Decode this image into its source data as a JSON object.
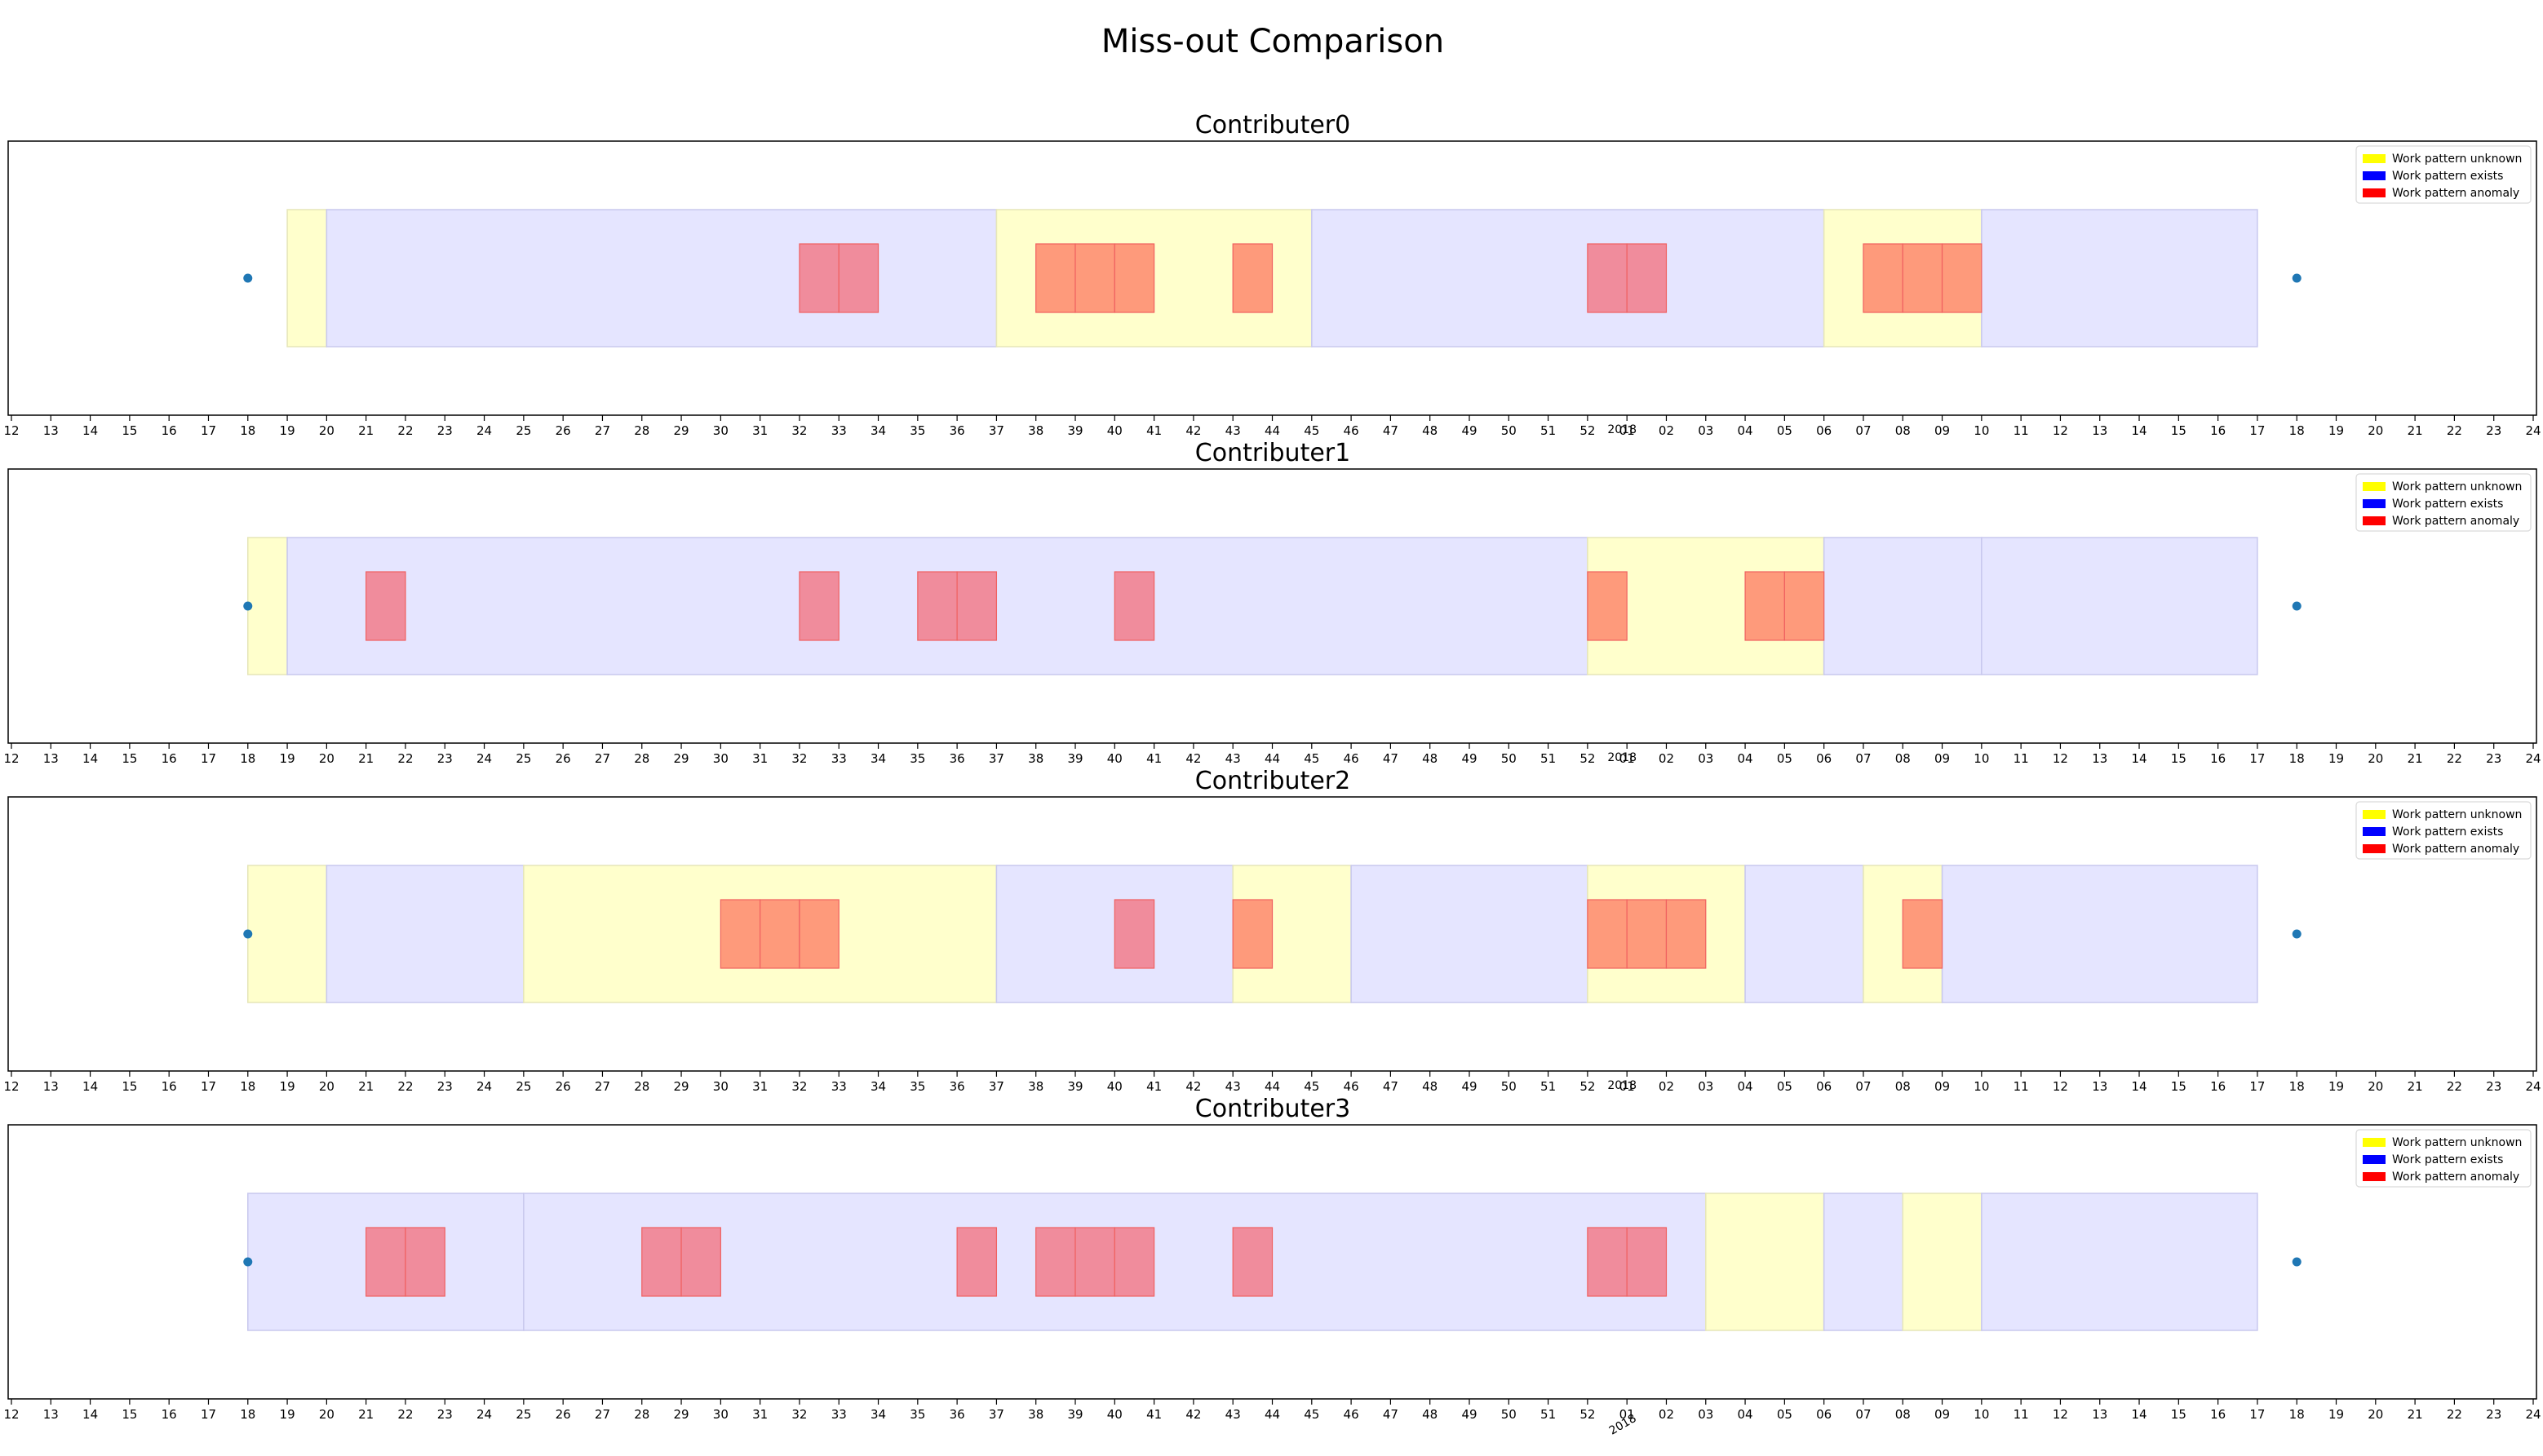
{
  "figure": {
    "title": "Miss-out Comparison"
  },
  "colors": {
    "unknown_fill": "#ffffcc",
    "exists_fill": "#e5e5ff",
    "anomaly_on_exists": "#f08c9c",
    "anomaly_on_unknown": "#fe9a7b",
    "anomaly_edge": "#f06060",
    "marker": "#1f77b4",
    "legend_unknown": "#ffff00",
    "legend_exists": "#0000ff",
    "legend_anomaly": "#ff0000"
  },
  "legend": [
    {
      "label": "Work pattern unknown",
      "color_key": "legend_unknown"
    },
    {
      "label": "Work pattern exists",
      "color_key": "legend_exists"
    },
    {
      "label": "Work pattern anomaly",
      "color_key": "legend_anomaly"
    }
  ],
  "chart_data": {
    "type": "timeline",
    "x_axis": {
      "unit": "ISO week",
      "ticks": [
        "12",
        "13",
        "14",
        "15",
        "16",
        "17",
        "18",
        "19",
        "20",
        "21",
        "22",
        "23",
        "24",
        "25",
        "26",
        "27",
        "28",
        "29",
        "30",
        "31",
        "32",
        "33",
        "34",
        "35",
        "36",
        "37",
        "38",
        "39",
        "40",
        "41",
        "42",
        "43",
        "44",
        "45",
        "46",
        "47",
        "48",
        "49",
        "50",
        "51",
        "52",
        "01",
        "02",
        "03",
        "04",
        "05",
        "06",
        "07",
        "08",
        "09",
        "10",
        "11",
        "12",
        "13",
        "14",
        "15",
        "16",
        "17",
        "18",
        "19",
        "20",
        "21",
        "22",
        "23",
        "24"
      ],
      "year_label": "2018",
      "year_label_at": "01"
    },
    "legend_position": "top-right",
    "panels": [
      {
        "title": "Contributer0",
        "markers": [
          "18",
          "18"
        ],
        "segments": [
          {
            "state": "unknown",
            "from": "19",
            "to": "20"
          },
          {
            "state": "exists",
            "from": "20",
            "to": "37"
          },
          {
            "state": "unknown",
            "from": "37",
            "to": "45"
          },
          {
            "state": "exists",
            "from": "45",
            "to": "06"
          },
          {
            "state": "unknown",
            "from": "06",
            "to": "10"
          },
          {
            "state": "exists",
            "from": "10",
            "to": "17"
          }
        ],
        "anomalies": [
          "32",
          "33",
          "38",
          "39",
          "40",
          "43",
          "52",
          "01",
          "07",
          "08",
          "09"
        ]
      },
      {
        "title": "Contributer1",
        "markers": [
          "18",
          "18"
        ],
        "segments": [
          {
            "state": "unknown",
            "from": "18",
            "to": "19"
          },
          {
            "state": "exists",
            "from": "19",
            "to": "52"
          },
          {
            "state": "unknown",
            "from": "52",
            "to": "06"
          },
          {
            "state": "exists",
            "from": "06",
            "to": "10"
          },
          {
            "state": "exists",
            "from": "10",
            "to": "17"
          }
        ],
        "anomalies": [
          "21",
          "32",
          "35",
          "36",
          "40",
          "52",
          "04",
          "05"
        ]
      },
      {
        "title": "Contributer2",
        "markers": [
          "18",
          "18"
        ],
        "segments": [
          {
            "state": "unknown",
            "from": "18",
            "to": "20"
          },
          {
            "state": "exists",
            "from": "20",
            "to": "25"
          },
          {
            "state": "unknown",
            "from": "25",
            "to": "37"
          },
          {
            "state": "exists",
            "from": "37",
            "to": "43"
          },
          {
            "state": "unknown",
            "from": "43",
            "to": "46"
          },
          {
            "state": "exists",
            "from": "46",
            "to": "52"
          },
          {
            "state": "unknown",
            "from": "52",
            "to": "04"
          },
          {
            "state": "exists",
            "from": "04",
            "to": "07"
          },
          {
            "state": "unknown",
            "from": "07",
            "to": "09"
          },
          {
            "state": "exists",
            "from": "09",
            "to": "17"
          }
        ],
        "anomalies": [
          "30",
          "31",
          "32",
          "40",
          "43",
          "52",
          "01",
          "02",
          "08"
        ]
      },
      {
        "title": "Contributer3",
        "markers": [
          "18",
          "18"
        ],
        "segments": [
          {
            "state": "exists",
            "from": "18",
            "to": "25"
          },
          {
            "state": "exists",
            "from": "25",
            "to": "03"
          },
          {
            "state": "unknown",
            "from": "03",
            "to": "06"
          },
          {
            "state": "exists",
            "from": "06",
            "to": "08"
          },
          {
            "state": "unknown",
            "from": "08",
            "to": "10"
          },
          {
            "state": "exists",
            "from": "10",
            "to": "17"
          }
        ],
        "anomalies": [
          "21",
          "22",
          "28",
          "29",
          "36",
          "38",
          "39",
          "40",
          "43",
          "52",
          "01"
        ]
      }
    ]
  }
}
